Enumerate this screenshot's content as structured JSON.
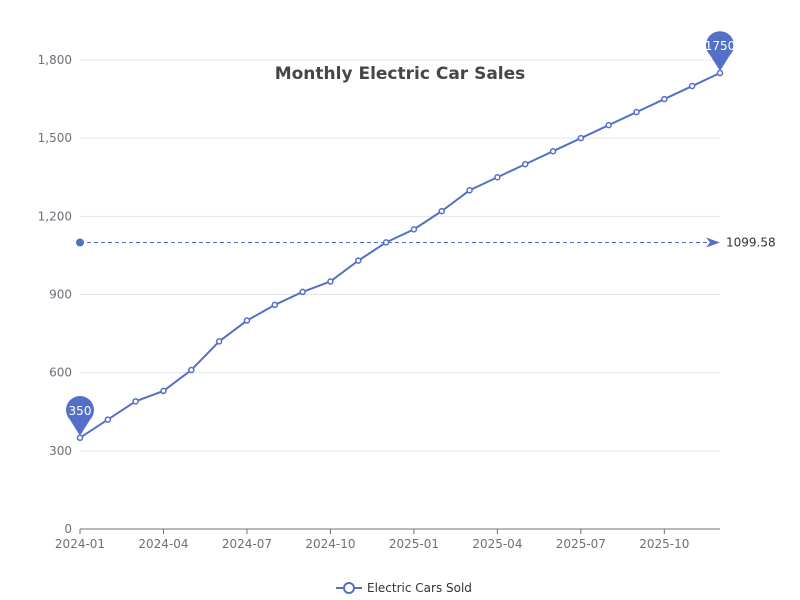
{
  "chart_data": {
    "type": "line",
    "title": "Monthly Electric Car Sales",
    "xlabel": "",
    "ylabel": "",
    "x": [
      "2024-01",
      "2024-02",
      "2024-03",
      "2024-04",
      "2024-05",
      "2024-06",
      "2024-07",
      "2024-08",
      "2024-09",
      "2024-10",
      "2024-11",
      "2024-12",
      "2025-01",
      "2025-02",
      "2025-03",
      "2025-04",
      "2025-05",
      "2025-06",
      "2025-07",
      "2025-08",
      "2025-09",
      "2025-10",
      "2025-11",
      "2025-12"
    ],
    "x_tick_labels": [
      "2024-01",
      "2024-04",
      "2024-07",
      "2024-10",
      "2025-01",
      "2025-04",
      "2025-07",
      "2025-10"
    ],
    "series": [
      {
        "name": "Electric Cars Sold",
        "color": "#5470c6",
        "values": [
          350,
          420,
          490,
          530,
          610,
          720,
          800,
          860,
          910,
          950,
          1030,
          1100,
          1150,
          1220,
          1300,
          1350,
          1400,
          1450,
          1500,
          1550,
          1600,
          1650,
          1700,
          1750
        ]
      }
    ],
    "ylim": [
      0,
      1800
    ],
    "y_ticks": [
      0,
      300,
      600,
      900,
      1200,
      1500,
      1800
    ],
    "y_tick_labels": [
      "0",
      "300",
      "600",
      "900",
      "1,200",
      "1,500",
      "1,800"
    ],
    "grid": true,
    "legend_position": "bottom-center",
    "mark_points": [
      {
        "label": "350",
        "x": "2024-01",
        "y": 350
      },
      {
        "label": "1750",
        "x": "2025-12",
        "y": 1750
      }
    ],
    "mark_line": {
      "label": "1099.58",
      "y": 1099.58
    }
  }
}
